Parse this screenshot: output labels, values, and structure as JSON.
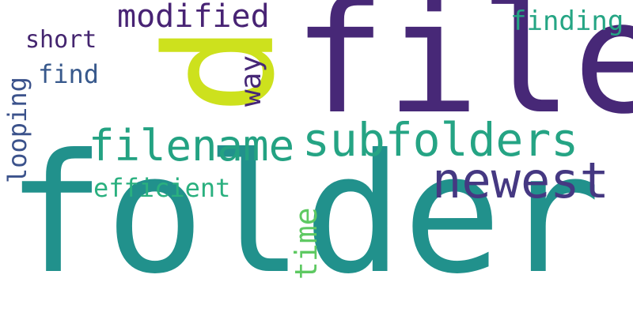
{
  "words": {
    "folder": {
      "text": "folder",
      "color": "#21918c"
    },
    "file": {
      "text": "file",
      "color": "#472877"
    },
    "p": {
      "text": "p",
      "color": "#cde11d"
    },
    "subfolders": {
      "text": "subfolders",
      "color": "#25a484"
    },
    "filename": {
      "text": "filename",
      "color": "#23a282"
    },
    "newest": {
      "text": "newest",
      "color": "#453882"
    },
    "modified": {
      "text": "modified",
      "color": "#482374"
    },
    "finding": {
      "text": "finding",
      "color": "#25a584"
    },
    "short": {
      "text": "short",
      "color": "#44256f"
    },
    "find": {
      "text": "find",
      "color": "#38598c"
    },
    "way": {
      "text": "way",
      "color": "#472877"
    },
    "looping": {
      "text": "looping",
      "color": "#3b528b"
    },
    "efficient": {
      "text": "efficient",
      "color": "#2ab07f"
    },
    "time": {
      "text": "time",
      "color": "#5ec962"
    }
  }
}
